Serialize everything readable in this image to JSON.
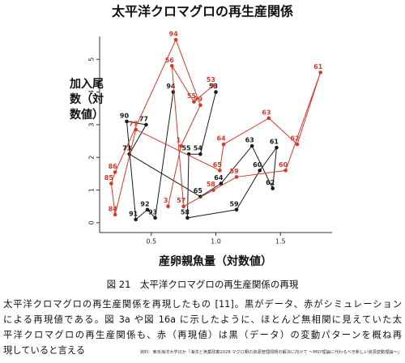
{
  "chart_data": {
    "type": "line",
    "title": "太平洋クロマグロの再生産関係",
    "xlabel": "産卵親魚量（対数値）",
    "ylabel": "加入尾数（対数値）",
    "xlim": [
      0.1,
      1.9
    ],
    "ylim": [
      -0.3,
      5.7
    ],
    "xticks": [
      0.5,
      {
        "value": 1,
        "label": "1.0"
      },
      1.5
    ],
    "yticks": [
      0,
      1,
      2,
      3,
      4,
      5
    ],
    "series": [
      {
        "color": "#1a1a1a",
        "x": [
          1.0,
          0.88,
          0.79,
          0.78,
          1.16,
          1.34,
          1.47,
          1.44,
          1.28,
          1.04,
          0.88,
          0.33,
          0.46,
          0.31,
          0.38,
          0.47,
          0.53,
          0.67
        ],
        "values": [
          4.0,
          2.1,
          2.1,
          0.15,
          0.4,
          1.6,
          2.3,
          1.05,
          2.35,
          1.2,
          0.8,
          2.1,
          3.0,
          3.1,
          0.1,
          0.4,
          0.15,
          4.0
        ],
        "point_labels": [
          "53",
          "54",
          "55",
          "58",
          "59",
          "60",
          "61",
          "62",
          "63",
          "64",
          "65",
          "73",
          "77",
          "90",
          "91",
          "92",
          "93",
          "94"
        ]
      },
      {
        "color": "#d23a2a",
        "x": [
          0.98,
          0.83,
          0.66,
          0.75,
          0.98,
          1.16,
          1.54,
          1.81,
          1.63,
          1.41,
          1.06,
          1.03,
          0.38,
          0.22,
          0.19,
          0.22,
          0.69,
          0.88,
          0.73,
          0.63
        ],
        "values": [
          4.2,
          3.7,
          4.8,
          0.5,
          1.0,
          1.4,
          1.6,
          4.6,
          2.4,
          3.2,
          2.4,
          1.6,
          2.85,
          0.25,
          1.2,
          1.55,
          5.6,
          3.6,
          2.35,
          0.5
        ],
        "point_labels": [
          "53",
          "55",
          "56",
          "57",
          "58",
          "59",
          "60",
          "61",
          "62",
          "63",
          "64",
          "65",
          "77",
          "84",
          "85",
          "86",
          "94",
          "99",
          "1",
          "3"
        ]
      }
    ]
  },
  "caption": "図 21　太平洋クロマグロの再生産関係の再現",
  "body": [
    "太平洋クロマグロの再生産関係を再現したもの [11]。黒がデータ、赤がシミュレーション",
    "による再現値である。図 3a や図 16a に示したように、ほとんど無相関に見えていた太",
    "平洋クロマグロの再生産関係も、赤（再現値）は黒（データ）の変動パターンを概ね再",
    "現していると言える"
  ],
  "source": "資料：東京海洋大学ほか「海洋と漁業政策2028 マグロ類の資源管理問題の解決に向けて ～MSY理論に代わるべき新しい資源変動理論～」"
}
